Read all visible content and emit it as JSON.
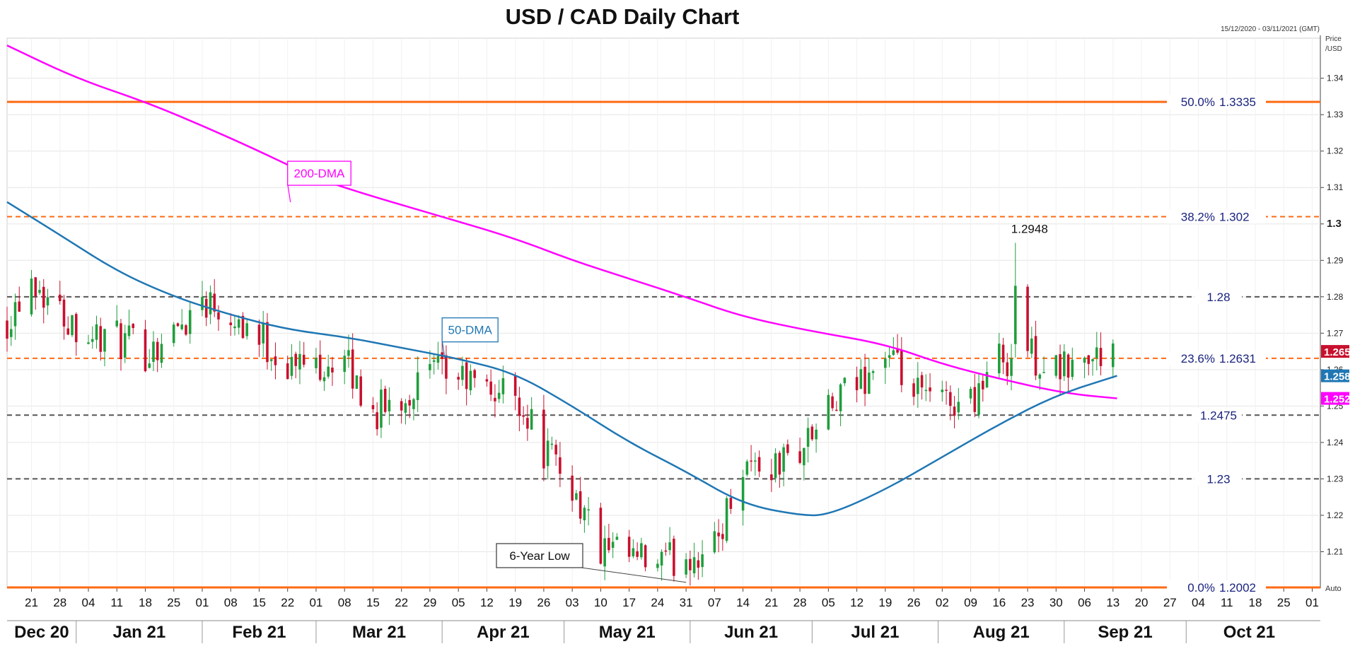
{
  "title": "USD / CAD Daily Chart",
  "date_range": "15/12/2020 - 03/11/2021 (GMT)",
  "axis_caption_line1": "Price",
  "axis_caption_line2": "/USD",
  "auto_label": "Auto",
  "colors": {
    "up": "#1f9e3c",
    "down": "#c8102e",
    "fib_line": "#ff6a13",
    "support_line": "#555555",
    "sma50": "#1f77b4",
    "sma200": "#ff00ff",
    "label_text": "#1a237e"
  },
  "chart_data": {
    "type": "line",
    "title": "USD / CAD Daily Chart",
    "ylim": [
      1.2,
      1.351
    ],
    "y_ticks": [
      1.21,
      1.22,
      1.23,
      1.24,
      1.25,
      1.26,
      1.27,
      1.28,
      1.29,
      1.3,
      1.31,
      1.32,
      1.33,
      1.34
    ],
    "y_tick_labels": [
      "1.21",
      "1.22",
      "1.23",
      "1.24",
      "1.25",
      "1.26",
      "1.27",
      "1.28",
      "1.29",
      "1.3",
      "1.31",
      "1.32",
      "1.33",
      "1.34"
    ],
    "x_start": "2020-12-15",
    "x_end": "2021-11-03",
    "day_ticks": [
      {
        "date": "2020-12-21",
        "label": "21"
      },
      {
        "date": "2020-12-28",
        "label": "28"
      },
      {
        "date": "2021-01-04",
        "label": "04"
      },
      {
        "date": "2021-01-11",
        "label": "11"
      },
      {
        "date": "2021-01-18",
        "label": "18"
      },
      {
        "date": "2021-01-25",
        "label": "25"
      },
      {
        "date": "2021-02-01",
        "label": "01"
      },
      {
        "date": "2021-02-08",
        "label": "08"
      },
      {
        "date": "2021-02-15",
        "label": "15"
      },
      {
        "date": "2021-02-22",
        "label": "22"
      },
      {
        "date": "2021-03-01",
        "label": "01"
      },
      {
        "date": "2021-03-08",
        "label": "08"
      },
      {
        "date": "2021-03-15",
        "label": "15"
      },
      {
        "date": "2021-03-22",
        "label": "22"
      },
      {
        "date": "2021-03-29",
        "label": "29"
      },
      {
        "date": "2021-04-05",
        "label": "05"
      },
      {
        "date": "2021-04-12",
        "label": "12"
      },
      {
        "date": "2021-04-19",
        "label": "19"
      },
      {
        "date": "2021-04-26",
        "label": "26"
      },
      {
        "date": "2021-05-03",
        "label": "03"
      },
      {
        "date": "2021-05-10",
        "label": "10"
      },
      {
        "date": "2021-05-17",
        "label": "17"
      },
      {
        "date": "2021-05-24",
        "label": "24"
      },
      {
        "date": "2021-05-31",
        "label": "31"
      },
      {
        "date": "2021-06-07",
        "label": "07"
      },
      {
        "date": "2021-06-14",
        "label": "14"
      },
      {
        "date": "2021-06-21",
        "label": "21"
      },
      {
        "date": "2021-06-28",
        "label": "28"
      },
      {
        "date": "2021-07-05",
        "label": "05"
      },
      {
        "date": "2021-07-12",
        "label": "12"
      },
      {
        "date": "2021-07-19",
        "label": "19"
      },
      {
        "date": "2021-07-26",
        "label": "26"
      },
      {
        "date": "2021-08-02",
        "label": "02"
      },
      {
        "date": "2021-08-09",
        "label": "09"
      },
      {
        "date": "2021-08-16",
        "label": "16"
      },
      {
        "date": "2021-08-23",
        "label": "23"
      },
      {
        "date": "2021-08-30",
        "label": "30"
      },
      {
        "date": "2021-09-06",
        "label": "06"
      },
      {
        "date": "2021-09-13",
        "label": "13"
      },
      {
        "date": "2021-09-20",
        "label": "20"
      },
      {
        "date": "2021-09-27",
        "label": "27"
      },
      {
        "date": "2021-10-04",
        "label": "04"
      },
      {
        "date": "2021-10-11",
        "label": "11"
      },
      {
        "date": "2021-10-18",
        "label": "18"
      },
      {
        "date": "2021-10-25",
        "label": "25"
      },
      {
        "date": "2021-11-01",
        "label": "01"
      }
    ],
    "month_ticks": [
      {
        "label": "Dec 20",
        "start": "2020-12-15",
        "end": "2021-01-01"
      },
      {
        "label": "Jan 21",
        "start": "2021-01-01",
        "end": "2021-02-01"
      },
      {
        "label": "Feb 21",
        "start": "2021-02-01",
        "end": "2021-03-01"
      },
      {
        "label": "Mar 21",
        "start": "2021-03-01",
        "end": "2021-04-01"
      },
      {
        "label": "Apr 21",
        "start": "2021-04-01",
        "end": "2021-05-01"
      },
      {
        "label": "May 21",
        "start": "2021-05-01",
        "end": "2021-06-01"
      },
      {
        "label": "Jun 21",
        "start": "2021-06-01",
        "end": "2021-07-01"
      },
      {
        "label": "Jul 21",
        "start": "2021-07-01",
        "end": "2021-08-01"
      },
      {
        "label": "Aug 21",
        "start": "2021-08-01",
        "end": "2021-09-01"
      },
      {
        "label": "Sep 21",
        "start": "2021-09-01",
        "end": "2021-10-01"
      },
      {
        "label": "Oct 21",
        "start": "2021-10-01",
        "end": "2021-11-01"
      }
    ],
    "weekly_closes": [
      {
        "date": "2020-12-15",
        "value": 1.274
      },
      {
        "date": "2020-12-21",
        "value": 1.286
      },
      {
        "date": "2020-12-28",
        "value": 1.276
      },
      {
        "date": "2021-01-04",
        "value": 1.27
      },
      {
        "date": "2021-01-11",
        "value": 1.268
      },
      {
        "date": "2021-01-18",
        "value": 1.265
      },
      {
        "date": "2021-01-25",
        "value": 1.27
      },
      {
        "date": "2021-02-01",
        "value": 1.28
      },
      {
        "date": "2021-02-08",
        "value": 1.276
      },
      {
        "date": "2021-02-15",
        "value": 1.269
      },
      {
        "date": "2021-02-22",
        "value": 1.261
      },
      {
        "date": "2021-03-01",
        "value": 1.262
      },
      {
        "date": "2021-03-08",
        "value": 1.262
      },
      {
        "date": "2021-03-15",
        "value": 1.248
      },
      {
        "date": "2021-03-22",
        "value": 1.252
      },
      {
        "date": "2021-03-29",
        "value": 1.259
      },
      {
        "date": "2021-04-05",
        "value": 1.258
      },
      {
        "date": "2021-04-12",
        "value": 1.254
      },
      {
        "date": "2021-04-19",
        "value": 1.254
      },
      {
        "date": "2021-04-26",
        "value": 1.238
      },
      {
        "date": "2021-05-03",
        "value": 1.228
      },
      {
        "date": "2021-05-10",
        "value": 1.21
      },
      {
        "date": "2021-05-17",
        "value": 1.208
      },
      {
        "date": "2021-05-24",
        "value": 1.206
      },
      {
        "date": "2021-05-31",
        "value": 1.209
      },
      {
        "date": "2021-06-07",
        "value": 1.211
      },
      {
        "date": "2021-06-14",
        "value": 1.235
      },
      {
        "date": "2021-06-21",
        "value": 1.233
      },
      {
        "date": "2021-06-28",
        "value": 1.238
      },
      {
        "date": "2021-07-05",
        "value": 1.248
      },
      {
        "date": "2021-07-12",
        "value": 1.256
      },
      {
        "date": "2021-07-19",
        "value": 1.264
      },
      {
        "date": "2021-07-26",
        "value": 1.253
      },
      {
        "date": "2021-08-02",
        "value": 1.251
      },
      {
        "date": "2021-08-09",
        "value": 1.252
      },
      {
        "date": "2021-08-16",
        "value": 1.263
      },
      {
        "date": "2021-08-23",
        "value": 1.265
      },
      {
        "date": "2021-08-30",
        "value": 1.259
      },
      {
        "date": "2021-09-06",
        "value": 1.262
      },
      {
        "date": "2021-09-13",
        "value": 1.265
      }
    ],
    "series": [
      {
        "name": "200-DMA",
        "color": "#ff00ff",
        "x": [
          "2020-12-15",
          "2021-01-01",
          "2021-01-18",
          "2021-02-01",
          "2021-02-15",
          "2021-03-01",
          "2021-03-15",
          "2021-04-01",
          "2021-04-19",
          "2021-05-03",
          "2021-05-17",
          "2021-06-01",
          "2021-06-14",
          "2021-07-01",
          "2021-07-19",
          "2021-08-02",
          "2021-08-16",
          "2021-09-01",
          "2021-09-14"
        ],
        "y": [
          1.349,
          1.34,
          1.3335,
          1.327,
          1.32,
          1.3125,
          1.3075,
          1.302,
          1.296,
          1.29,
          1.285,
          1.2795,
          1.2745,
          1.2705,
          1.267,
          1.2615,
          1.2575,
          1.2535,
          1.2521
        ]
      },
      {
        "name": "50-DMA",
        "color": "#1f77b4",
        "x": [
          "2020-12-15",
          "2020-12-28",
          "2021-01-11",
          "2021-01-25",
          "2021-02-08",
          "2021-02-22",
          "2021-03-08",
          "2021-03-22",
          "2021-04-05",
          "2021-04-19",
          "2021-05-03",
          "2021-05-17",
          "2021-05-31",
          "2021-06-14",
          "2021-06-28",
          "2021-07-05",
          "2021-07-19",
          "2021-08-02",
          "2021-08-16",
          "2021-08-30",
          "2021-09-14"
        ],
        "y": [
          1.306,
          1.297,
          1.287,
          1.28,
          1.275,
          1.271,
          1.269,
          1.266,
          1.263,
          1.259,
          1.25,
          1.24,
          1.232,
          1.223,
          1.22,
          1.22,
          1.227,
          1.236,
          1.245,
          1.253,
          1.2583
        ]
      }
    ],
    "horizontal_levels": [
      {
        "value": 1.3335,
        "style": "fib",
        "label": "50.0%",
        "value_label": "1.3335"
      },
      {
        "value": 1.302,
        "style": "fib",
        "label": "38.2%",
        "value_label": "1.302"
      },
      {
        "value": 1.28,
        "style": "support",
        "label": "",
        "value_label": "1.28"
      },
      {
        "value": 1.2631,
        "style": "fib",
        "label": "23.6%",
        "value_label": "1.2631"
      },
      {
        "value": 1.2475,
        "style": "support",
        "label": "",
        "value_label": "1.2475"
      },
      {
        "value": 1.23,
        "style": "support",
        "label": "",
        "value_label": "1.23"
      },
      {
        "value": 1.2002,
        "style": "fib",
        "label": "0.0%",
        "value_label": "1.2002"
      }
    ],
    "annotations": [
      {
        "text": "1.2948",
        "x": "2021-08-20",
        "y": 1.2948
      },
      {
        "text": "200-DMA",
        "x": "2021-02-22",
        "y": 1.311,
        "series": "200-DMA"
      },
      {
        "text": "50-DMA",
        "x": "2021-04-01",
        "y": 1.268,
        "series": "50-DMA"
      },
      {
        "text": "6-Year Low",
        "x": "2021-05-31",
        "y": 1.202
      }
    ],
    "price_badges": [
      {
        "text": "1.265",
        "value": 1.265,
        "color": "#c8102e"
      },
      {
        "text": "1.2583",
        "value": 1.2583,
        "color": "#1f77b4"
      },
      {
        "text": "1.2521",
        "value": 1.2521,
        "color": "#ff00ff"
      }
    ]
  }
}
